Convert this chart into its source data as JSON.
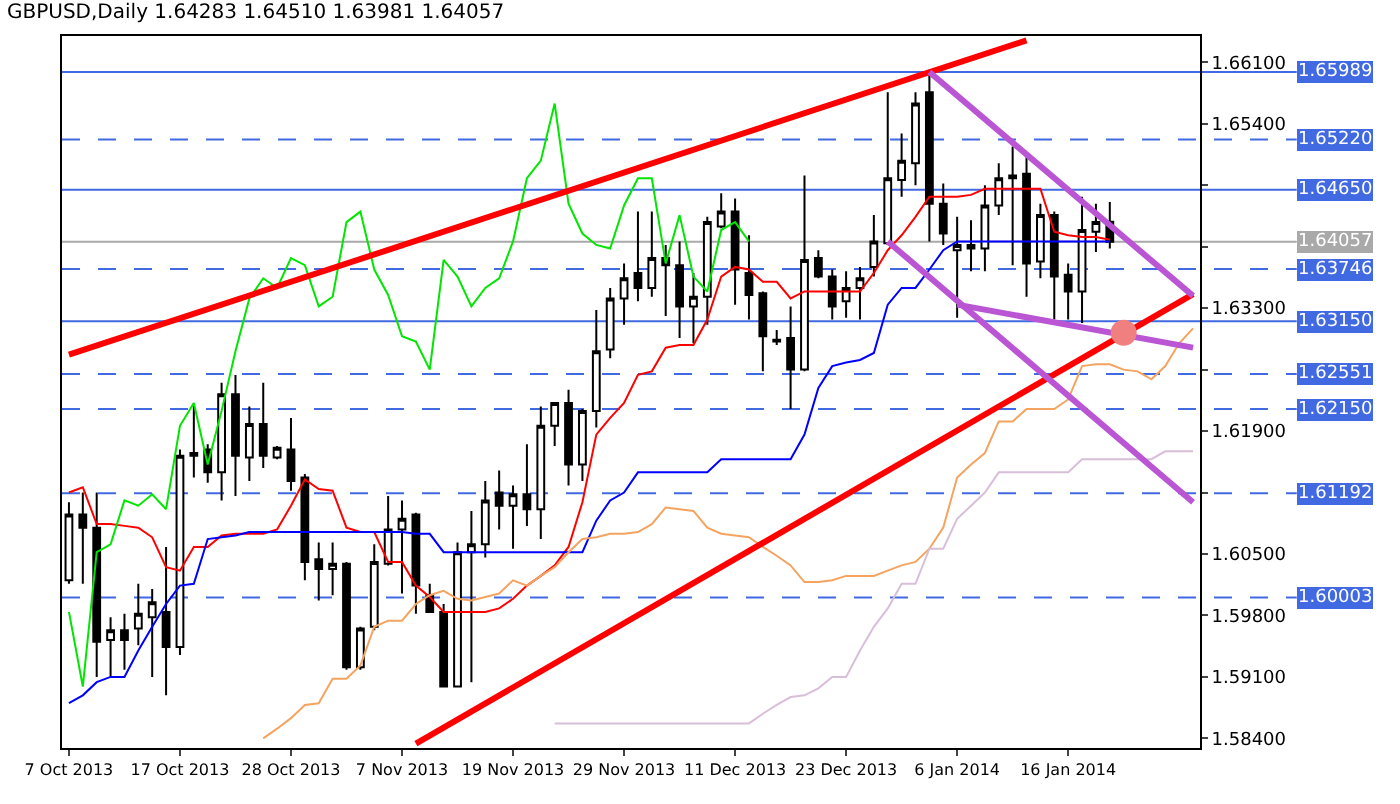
{
  "chart_data": {
    "type": "candlestick",
    "title": "GBPUSD,Daily 1.64283 1.64510 1.63981 1.64057",
    "categories": [
      "7 Oct 2013",
      null,
      null,
      null,
      null,
      null,
      null,
      null,
      "17 Oct 2013",
      null,
      null,
      null,
      null,
      null,
      null,
      null,
      "28 Oct 2013",
      null,
      null,
      null,
      null,
      null,
      null,
      null,
      "7 Nov 2013",
      null,
      null,
      null,
      null,
      null,
      null,
      null,
      "19 Nov 2013",
      null,
      null,
      null,
      null,
      null,
      null,
      null,
      "29 Nov 2013",
      null,
      null,
      null,
      null,
      null,
      null,
      null,
      "11 Dec 2013",
      null,
      null,
      null,
      null,
      null,
      null,
      null,
      "23 Dec 2013",
      null,
      null,
      null,
      null,
      null,
      null,
      null,
      "6 Jan 2014",
      null,
      null,
      null,
      null,
      null,
      null,
      null,
      "16 Jan 2014",
      null,
      null,
      null,
      null,
      null,
      null,
      null,
      null,
      null
    ],
    "ohlc": [
      [
        1.602,
        1.6109,
        1.6016,
        1.6095
      ],
      [
        1.6095,
        1.612,
        1.6016,
        1.608
      ],
      [
        1.608,
        1.612,
        1.591,
        1.595
      ],
      [
        1.5952,
        1.5978,
        1.591,
        1.5963
      ],
      [
        1.5963,
        1.5982,
        1.5918,
        1.5952
      ],
      [
        1.5965,
        1.6016,
        1.5946,
        1.5982
      ],
      [
        1.5978,
        1.601,
        1.591,
        1.5995
      ],
      [
        1.5984,
        1.6058,
        1.5889,
        1.5944
      ],
      [
        1.5944,
        1.6169,
        1.5935,
        1.6162
      ],
      [
        1.6162,
        1.6222,
        1.6137,
        1.6165
      ],
      [
        1.6169,
        1.6175,
        1.6131,
        1.6143
      ],
      [
        1.6143,
        1.6245,
        1.6111,
        1.6232
      ],
      [
        1.6232,
        1.6254,
        1.6116,
        1.6162
      ],
      [
        1.616,
        1.6218,
        1.6133,
        1.6198
      ],
      [
        1.6198,
        1.6245,
        1.6148,
        1.6162
      ],
      [
        1.616,
        1.6173,
        1.6158,
        1.6171
      ],
      [
        1.6169,
        1.6205,
        1.6122,
        1.6133
      ],
      [
        1.6137,
        1.6141,
        1.602,
        1.6041
      ],
      [
        1.6044,
        1.6063,
        1.5997,
        1.6033
      ],
      [
        1.6033,
        1.6063,
        1.6003,
        1.6039
      ],
      [
        1.6039,
        1.6041,
        1.5918,
        1.5921
      ],
      [
        1.5921,
        1.5967,
        1.5918,
        1.5965
      ],
      [
        1.5967,
        1.6061,
        1.5963,
        1.6041
      ],
      [
        1.6039,
        1.6116,
        1.6037,
        1.6078
      ],
      [
        1.6078,
        1.6111,
        1.6005,
        1.609
      ],
      [
        1.6095,
        1.6097,
        1.5982,
        1.6014
      ],
      [
        1.6003,
        1.6016,
        1.5984,
        1.5984
      ],
      [
        1.5984,
        1.5993,
        1.5899,
        1.5899
      ],
      [
        1.5899,
        1.6063,
        1.5899,
        1.6052
      ],
      [
        1.6052,
        1.6099,
        1.5904,
        1.6061
      ],
      [
        1.6061,
        1.6133,
        1.6046,
        1.6111
      ],
      [
        1.612,
        1.6145,
        1.6078,
        1.6105
      ],
      [
        1.6105,
        1.6128,
        1.6056,
        1.6118
      ],
      [
        1.6118,
        1.6175,
        1.6082,
        1.6101
      ],
      [
        1.6101,
        1.6218,
        1.6067,
        1.6196
      ],
      [
        1.6196,
        1.6222,
        1.6173,
        1.6222
      ],
      [
        1.6222,
        1.6237,
        1.6128,
        1.6152
      ],
      [
        1.6152,
        1.6215,
        1.6133,
        1.6213
      ],
      [
        1.6213,
        1.6328,
        1.6194,
        1.6281
      ],
      [
        1.6283,
        1.6353,
        1.6273,
        1.6341
      ],
      [
        1.6341,
        1.6381,
        1.6311,
        1.6364
      ],
      [
        1.637,
        1.644,
        1.6338,
        1.6353
      ],
      [
        1.6353,
        1.644,
        1.6343,
        1.6387
      ],
      [
        1.6387,
        1.6402,
        1.6321,
        1.6379
      ],
      [
        1.6379,
        1.6406,
        1.6296,
        1.6332
      ],
      [
        1.6332,
        1.637,
        1.629,
        1.6343
      ],
      [
        1.6343,
        1.6434,
        1.6311,
        1.6428
      ],
      [
        1.6423,
        1.6461,
        1.6421,
        1.644
      ],
      [
        1.644,
        1.6455,
        1.6334,
        1.6374
      ],
      [
        1.637,
        1.6413,
        1.6317,
        1.6345
      ],
      [
        1.6347,
        1.6349,
        1.6258,
        1.6298
      ],
      [
        1.6294,
        1.6305,
        1.6288,
        1.6292
      ],
      [
        1.6296,
        1.6332,
        1.6215,
        1.626
      ],
      [
        1.626,
        1.6481,
        1.6258,
        1.6385
      ],
      [
        1.6387,
        1.6396,
        1.6364,
        1.6366
      ],
      [
        1.6366,
        1.6374,
        1.6317,
        1.6332
      ],
      [
        1.6338,
        1.6372,
        1.6319,
        1.6353
      ],
      [
        1.6353,
        1.6377,
        1.6317,
        1.6364
      ],
      [
        1.6377,
        1.6436,
        1.6366,
        1.6406
      ],
      [
        1.6404,
        1.6576,
        1.6402,
        1.6478
      ],
      [
        1.6476,
        1.6529,
        1.6457,
        1.6498
      ],
      [
        1.6495,
        1.6576,
        1.647,
        1.6563
      ],
      [
        1.6576,
        1.6599,
        1.6406,
        1.6449
      ],
      [
        1.6449,
        1.6472,
        1.6402,
        1.6415
      ],
      [
        1.6396,
        1.6434,
        1.6319,
        1.6402
      ],
      [
        1.6402,
        1.643,
        1.6372,
        1.6398
      ],
      [
        1.6398,
        1.647,
        1.6372,
        1.6447
      ],
      [
        1.6447,
        1.6495,
        1.6436,
        1.6478
      ],
      [
        1.6481,
        1.6514,
        1.6379,
        1.6478
      ],
      [
        1.6483,
        1.6502,
        1.6343,
        1.6381
      ],
      [
        1.6383,
        1.6449,
        1.6364,
        1.6436
      ],
      [
        1.6436,
        1.644,
        1.6317,
        1.6366
      ],
      [
        1.6368,
        1.6381,
        1.6317,
        1.6349
      ],
      [
        1.6349,
        1.6457,
        1.6313,
        1.6419
      ],
      [
        1.6417,
        1.6449,
        1.6394,
        1.6428
      ],
      [
        1.64283,
        1.6451,
        1.63981,
        1.64057
      ],
      null,
      null,
      null,
      null,
      null,
      null
    ],
    "series": [
      {
        "type": "line",
        "color": "#ff0000",
        "values": [
          1.612,
          1.6126,
          1.6084,
          1.6084,
          1.6082,
          1.608,
          1.6069,
          1.6035,
          1.6031,
          1.6058,
          1.6058,
          1.6071,
          1.6073,
          1.6073,
          1.6073,
          1.6078,
          1.6105,
          1.6135,
          1.6124,
          1.6122,
          1.608,
          1.6075,
          1.6075,
          1.6041,
          1.6041,
          1.6014,
          1.6001,
          1.5984,
          1.5984,
          1.5984,
          1.5984,
          1.5988,
          1.5999,
          1.6014,
          1.6025,
          1.6037,
          1.6058,
          1.6109,
          1.6186,
          1.6205,
          1.6222,
          1.6254,
          1.6258,
          1.6285,
          1.6288,
          1.6288,
          1.6317,
          1.6366,
          1.6377,
          1.6374,
          1.636,
          1.636,
          1.6341,
          1.6349,
          1.6349,
          1.6349,
          1.6349,
          1.6349,
          1.637,
          1.6396,
          1.6413,
          1.6434,
          1.6457,
          1.6457,
          1.6457,
          1.6459,
          1.6466,
          1.6466,
          1.6466,
          1.6466,
          1.6466,
          1.6417,
          1.6413,
          1.6411,
          1.6411,
          1.6408,
          null,
          null,
          null,
          null,
          null,
          null
        ]
      },
      {
        "type": "line",
        "color": "#0000ff",
        "values": [
          1.588,
          1.5889,
          1.5904,
          1.591,
          1.591,
          1.594,
          1.5967,
          1.5993,
          1.6014,
          1.6016,
          1.6067,
          1.6069,
          1.6071,
          1.6075,
          1.6075,
          1.6075,
          1.6075,
          1.6075,
          1.6075,
          1.6075,
          1.6075,
          1.6075,
          1.6075,
          1.6075,
          1.6075,
          1.6073,
          1.6073,
          1.6052,
          1.6052,
          1.6052,
          1.6052,
          1.6052,
          1.6052,
          1.6052,
          1.6052,
          1.6052,
          1.6052,
          1.6052,
          1.6088,
          1.6111,
          1.612,
          1.6143,
          1.6143,
          1.6143,
          1.6143,
          1.6143,
          1.6143,
          1.6158,
          1.6158,
          1.6158,
          1.6158,
          1.6158,
          1.6158,
          1.6186,
          1.6239,
          1.6264,
          1.6268,
          1.6271,
          1.6279,
          1.6334,
          1.6353,
          1.6353,
          1.6374,
          1.6396,
          1.6406,
          1.6406,
          1.6406,
          1.6406,
          1.6406,
          1.6406,
          1.6406,
          1.6406,
          1.6406,
          1.6406,
          1.6406,
          1.6406,
          null,
          null,
          null,
          null,
          null,
          null
        ]
      },
      {
        "type": "line",
        "color": "#00e600",
        "values": [
          1.5984,
          1.5899,
          1.6052,
          1.6061,
          1.6111,
          1.6105,
          1.6118,
          1.6101,
          1.6196,
          1.6222,
          1.6152,
          1.6213,
          1.6281,
          1.6341,
          1.6364,
          1.6353,
          1.6387,
          1.6379,
          1.6332,
          1.6343,
          1.6428,
          1.644,
          1.6374,
          1.6345,
          1.6298,
          1.6292,
          1.626,
          1.6385,
          1.6366,
          1.6332,
          1.6353,
          1.6364,
          1.6406,
          1.6478,
          1.6498,
          1.6563,
          1.6449,
          1.6415,
          1.6402,
          1.6398,
          1.6447,
          1.6478,
          1.6478,
          1.6381,
          1.6436,
          1.6366,
          1.6349,
          1.6419,
          1.6428,
          1.6406,
          null,
          null,
          null,
          null,
          null,
          null,
          null,
          null,
          null,
          null,
          null,
          null,
          null,
          null,
          null,
          null,
          null,
          null,
          null,
          null,
          null,
          null,
          null,
          null,
          null,
          null,
          null,
          null,
          null,
          null,
          null,
          null
        ]
      },
      {
        "type": "line",
        "color": "#f4a460",
        "values": [
          null,
          null,
          null,
          null,
          null,
          null,
          null,
          null,
          null,
          null,
          null,
          null,
          null,
          null,
          1.584,
          1.5851,
          1.5863,
          1.5878,
          1.588,
          1.5908,
          1.5908,
          1.5923,
          1.5967,
          1.5974,
          1.5974,
          1.5993,
          1.6003,
          1.6008,
          1.5999,
          1.5997,
          1.6001,
          1.6005,
          1.602,
          1.6014,
          1.6025,
          1.6035,
          1.6052,
          1.6067,
          1.6069,
          1.6073,
          1.6073,
          1.6075,
          1.6084,
          1.6103,
          1.6101,
          1.6099,
          1.608,
          1.6073,
          1.6071,
          1.6069,
          1.6058,
          1.6048,
          1.6037,
          1.6018,
          1.6018,
          1.602,
          1.6025,
          1.6025,
          1.6025,
          1.6031,
          1.6037,
          1.6041,
          1.6056,
          1.608,
          1.6137,
          1.6152,
          1.6165,
          1.6201,
          1.6201,
          1.6215,
          1.6215,
          1.6215,
          1.6226,
          1.6264,
          1.6266,
          1.6266,
          1.626,
          1.6258,
          1.6249,
          1.6264,
          1.629,
          1.6307
        ]
      },
      {
        "type": "line",
        "color": "#d8bfd8",
        "values": [
          null,
          null,
          null,
          null,
          null,
          null,
          null,
          null,
          null,
          null,
          null,
          null,
          null,
          null,
          null,
          null,
          null,
          null,
          null,
          null,
          null,
          null,
          null,
          null,
          null,
          null,
          null,
          null,
          null,
          null,
          null,
          null,
          null,
          null,
          null,
          1.5857,
          1.5857,
          1.5857,
          1.5857,
          1.5857,
          1.5857,
          1.5857,
          1.5857,
          1.5857,
          1.5857,
          1.5857,
          1.5857,
          1.5857,
          1.5857,
          1.5857,
          1.5868,
          1.5878,
          1.5887,
          1.5889,
          1.5897,
          1.591,
          1.591,
          1.594,
          1.5967,
          1.5988,
          1.6016,
          1.6016,
          1.6056,
          1.6056,
          1.609,
          1.6105,
          1.612,
          1.6143,
          1.6143,
          1.6143,
          1.6143,
          1.6143,
          1.6143,
          1.6158,
          1.6158,
          1.6158,
          1.6158,
          1.6158,
          1.6158,
          1.6167,
          1.6167,
          1.6167
        ]
      },
      {
        "type": "line",
        "color": "#ff0000",
        "values": [
          1.6277,
          null,
          null,
          null,
          null,
          null,
          null,
          null,
          null,
          null,
          null,
          null,
          null,
          null,
          null,
          null,
          null,
          null,
          null,
          null,
          null,
          null,
          null,
          null,
          null,
          null,
          null,
          null,
          null,
          null,
          null,
          null,
          null,
          null,
          null,
          null,
          null,
          null,
          null,
          null,
          null,
          null,
          null,
          null,
          null,
          null,
          null,
          null,
          null,
          null,
          null,
          null,
          null,
          null,
          null,
          null,
          null,
          null,
          null,
          null,
          null,
          null,
          null,
          null,
          null,
          null,
          null,
          null,
          null,
          1.6635,
          null,
          null,
          null,
          null,
          null,
          null,
          null,
          null,
          null,
          null,
          null,
          null
        ]
      },
      {
        "type": "line",
        "color": "#ff0000",
        "values": [
          null,
          null,
          null,
          null,
          null,
          null,
          null,
          null,
          null,
          null,
          null,
          null,
          null,
          null,
          null,
          null,
          null,
          null,
          null,
          null,
          null,
          null,
          null,
          null,
          null,
          1.5834,
          null,
          null,
          null,
          null,
          null,
          null,
          null,
          null,
          null,
          null,
          null,
          null,
          null,
          null,
          null,
          null,
          null,
          null,
          null,
          null,
          null,
          null,
          null,
          null,
          null,
          null,
          null,
          null,
          null,
          null,
          null,
          null,
          null,
          null,
          null,
          null,
          null,
          null,
          null,
          null,
          null,
          null,
          null,
          null,
          null,
          null,
          null,
          null,
          null,
          null,
          null,
          null,
          null,
          null,
          null,
          1.6346
        ]
      },
      {
        "type": "line",
        "color": "#ba55d3",
        "values": [
          null,
          null,
          null,
          null,
          null,
          null,
          null,
          null,
          null,
          null,
          null,
          null,
          null,
          null,
          null,
          null,
          null,
          null,
          null,
          null,
          null,
          null,
          null,
          null,
          null,
          null,
          null,
          null,
          null,
          null,
          null,
          null,
          null,
          null,
          null,
          null,
          null,
          null,
          null,
          null,
          null,
          null,
          null,
          null,
          null,
          null,
          null,
          null,
          null,
          null,
          null,
          null,
          null,
          null,
          null,
          null,
          null,
          null,
          null,
          null,
          null,
          null,
          1.6599,
          null,
          null,
          null,
          null,
          null,
          null,
          null,
          null,
          null,
          null,
          null,
          null,
          null,
          null,
          null,
          null,
          null,
          null,
          1.6344
        ]
      },
      {
        "type": "line",
        "color": "#ba55d3",
        "values": [
          null,
          null,
          null,
          null,
          null,
          null,
          null,
          null,
          null,
          null,
          null,
          null,
          null,
          null,
          null,
          null,
          null,
          null,
          null,
          null,
          null,
          null,
          null,
          null,
          null,
          null,
          null,
          null,
          null,
          null,
          null,
          null,
          null,
          null,
          null,
          null,
          null,
          null,
          null,
          null,
          null,
          null,
          null,
          null,
          null,
          null,
          null,
          null,
          null,
          null,
          null,
          null,
          null,
          null,
          null,
          null,
          null,
          null,
          null,
          1.6406,
          null,
          null,
          null,
          null,
          null,
          null,
          null,
          null,
          null,
          null,
          null,
          null,
          null,
          null,
          null,
          null,
          null,
          null,
          null,
          null,
          null,
          1.6109
        ]
      },
      {
        "type": "line",
        "color": "#ba55d3",
        "values": [
          null,
          null,
          null,
          null,
          null,
          null,
          null,
          null,
          null,
          null,
          null,
          null,
          null,
          null,
          null,
          null,
          null,
          null,
          null,
          null,
          null,
          null,
          null,
          null,
          null,
          null,
          null,
          null,
          null,
          null,
          null,
          null,
          null,
          null,
          null,
          null,
          null,
          null,
          null,
          null,
          null,
          null,
          null,
          null,
          null,
          null,
          null,
          null,
          null,
          null,
          null,
          null,
          null,
          null,
          null,
          null,
          null,
          null,
          null,
          null,
          null,
          null,
          null,
          null,
          1.6334,
          null,
          null,
          null,
          null,
          null,
          null,
          null,
          null,
          null,
          null,
          null,
          null,
          null,
          null,
          null,
          null,
          1.6285
        ]
      },
      {
        "type": "scatter",
        "color": "#f08080",
        "marker": "circle",
        "values": [
          null,
          null,
          null,
          null,
          null,
          null,
          null,
          null,
          null,
          null,
          null,
          null,
          null,
          null,
          null,
          null,
          null,
          null,
          null,
          null,
          null,
          null,
          null,
          null,
          null,
          null,
          null,
          null,
          null,
          null,
          null,
          null,
          null,
          null,
          null,
          null,
          null,
          null,
          null,
          null,
          null,
          null,
          null,
          null,
          null,
          null,
          null,
          null,
          null,
          null,
          null,
          null,
          null,
          null,
          null,
          null,
          null,
          null,
          null,
          null,
          null,
          null,
          null,
          null,
          null,
          null,
          null,
          null,
          null,
          null,
          null,
          null,
          null,
          null,
          null,
          null,
          1.6302,
          null,
          null,
          null,
          null,
          null
        ]
      }
    ],
    "ylim": [
      1.5829,
      1.664
    ],
    "yticks": [
      {
        "value": 1.584,
        "label": "1.58400"
      },
      {
        "value": 1.591,
        "label": "1.59100"
      },
      {
        "value": 1.598,
        "label": "1.59800"
      },
      {
        "value": 1.605,
        "label": "1.60500"
      },
      {
        "value": 1.612,
        "label": null
      },
      {
        "value": 1.619,
        "label": "1.61900"
      },
      {
        "value": 1.626,
        "label": null
      },
      {
        "value": 1.633,
        "label": "1.63300"
      },
      {
        "value": 1.64,
        "label": null
      },
      {
        "value": 1.647,
        "label": null
      },
      {
        "value": 1.654,
        "label": "1.65400"
      },
      {
        "value": 1.661,
        "label": "1.66100"
      }
    ],
    "ref_lines": [
      {
        "axis": "y",
        "value": 1.65989,
        "label": "1.65989",
        "color": "#4169e1",
        "line_style": "solid"
      },
      {
        "axis": "y",
        "value": 1.6522,
        "label": "1.65220",
        "color": "#4169e1",
        "line_style": "dashed"
      },
      {
        "axis": "y",
        "value": 1.6465,
        "label": "1.64650",
        "color": "#4169e1",
        "line_style": "solid"
      },
      {
        "axis": "y",
        "value": 1.64057,
        "label": "1.64057",
        "color": "#a9a9a9",
        "line_style": "solid"
      },
      {
        "axis": "y",
        "value": 1.63746,
        "label": "1.63746",
        "color": "#4169e1",
        "line_style": "dashed"
      },
      {
        "axis": "y",
        "value": 1.6315,
        "label": "1.63150",
        "color": "#4169e1",
        "line_style": "solid"
      },
      {
        "axis": "y",
        "value": 1.62551,
        "label": "1.62551",
        "color": "#4169e1",
        "line_style": "dashed"
      },
      {
        "axis": "y",
        "value": 1.6215,
        "label": "1.62150",
        "color": "#4169e1",
        "line_style": "dashed"
      },
      {
        "axis": "y",
        "value": 1.61192,
        "label": "1.61192",
        "color": "#4169e1",
        "line_style": "dashed"
      },
      {
        "axis": "y",
        "value": 1.60003,
        "label": "1.60003",
        "color": "#4169e1",
        "line_style": "dashed"
      }
    ],
    "grid": false
  }
}
